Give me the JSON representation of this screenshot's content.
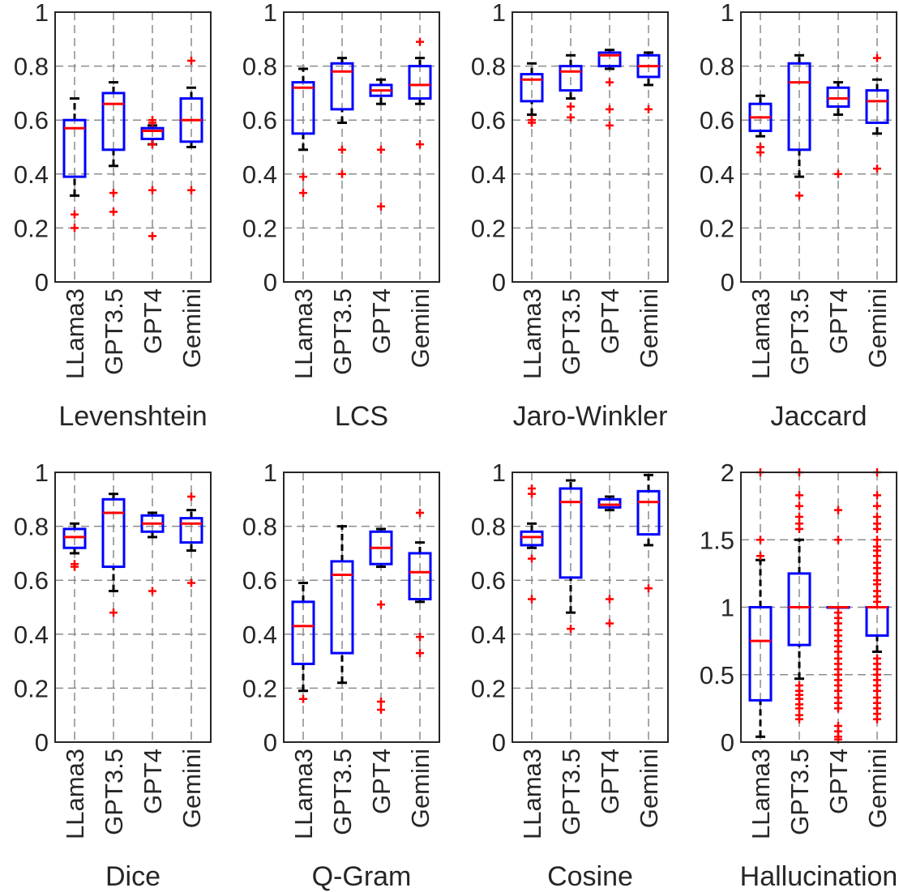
{
  "chart_data": [
    {
      "type": "box",
      "title": "Levenshtein",
      "categories": [
        "LLama3",
        "GPT3.5",
        "GPT4",
        "Gemini"
      ],
      "ylim": [
        0,
        1
      ],
      "yticks": [
        "0",
        "0.2",
        "0.4",
        "0.6",
        "0.8",
        "1"
      ],
      "grid": true,
      "boxes": [
        {
          "whisker_low": 0.32,
          "q1": 0.39,
          "median": 0.57,
          "q3": 0.6,
          "whisker_high": 0.68,
          "outliers": [
            0.25,
            0.2
          ]
        },
        {
          "whisker_low": 0.43,
          "q1": 0.49,
          "median": 0.66,
          "q3": 0.7,
          "whisker_high": 0.74,
          "outliers": [
            0.33,
            0.26
          ]
        },
        {
          "whisker_low": 0.51,
          "q1": 0.53,
          "median": 0.56,
          "q3": 0.57,
          "whisker_high": 0.58,
          "outliers": [
            0.6,
            0.59,
            0.51,
            0.34,
            0.17
          ]
        },
        {
          "whisker_low": 0.5,
          "q1": 0.52,
          "median": 0.6,
          "q3": 0.68,
          "whisker_high": 0.72,
          "outliers": [
            0.82,
            0.34
          ]
        }
      ]
    },
    {
      "type": "box",
      "title": "LCS",
      "categories": [
        "LLama3",
        "GPT3.5",
        "GPT4",
        "Gemini"
      ],
      "ylim": [
        0,
        1
      ],
      "yticks": [
        "0",
        "0.2",
        "0.4",
        "0.6",
        "0.8",
        "1"
      ],
      "grid": true,
      "boxes": [
        {
          "whisker_low": 0.49,
          "q1": 0.55,
          "median": 0.72,
          "q3": 0.74,
          "whisker_high": 0.79,
          "outliers": [
            0.39,
            0.33
          ]
        },
        {
          "whisker_low": 0.59,
          "q1": 0.64,
          "median": 0.78,
          "q3": 0.81,
          "whisker_high": 0.83,
          "outliers": [
            0.49,
            0.4
          ]
        },
        {
          "whisker_low": 0.66,
          "q1": 0.69,
          "median": 0.71,
          "q3": 0.73,
          "whisker_high": 0.75,
          "outliers": [
            0.49,
            0.28
          ]
        },
        {
          "whisker_low": 0.66,
          "q1": 0.68,
          "median": 0.73,
          "q3": 0.8,
          "whisker_high": 0.83,
          "outliers": [
            0.89,
            0.51
          ]
        }
      ]
    },
    {
      "type": "box",
      "title": "Jaro-Winkler",
      "categories": [
        "LLama3",
        "GPT3.5",
        "GPT4",
        "Gemini"
      ],
      "ylim": [
        0,
        1
      ],
      "yticks": [
        "0",
        "0.2",
        "0.4",
        "0.6",
        "0.8",
        "1"
      ],
      "grid": true,
      "boxes": [
        {
          "whisker_low": 0.62,
          "q1": 0.67,
          "median": 0.75,
          "q3": 0.77,
          "whisker_high": 0.81,
          "outliers": [
            0.6,
            0.59
          ]
        },
        {
          "whisker_low": 0.68,
          "q1": 0.71,
          "median": 0.78,
          "q3": 0.8,
          "whisker_high": 0.84,
          "outliers": [
            0.65,
            0.61
          ]
        },
        {
          "whisker_low": 0.79,
          "q1": 0.8,
          "median": 0.84,
          "q3": 0.85,
          "whisker_high": 0.86,
          "outliers": [
            0.74,
            0.64,
            0.58
          ]
        },
        {
          "whisker_low": 0.73,
          "q1": 0.76,
          "median": 0.8,
          "q3": 0.84,
          "whisker_high": 0.85,
          "outliers": [
            0.64
          ]
        }
      ]
    },
    {
      "type": "box",
      "title": "Jaccard",
      "categories": [
        "LLama3",
        "GPT3.5",
        "GPT4",
        "Gemini"
      ],
      "ylim": [
        0,
        1
      ],
      "yticks": [
        "0",
        "0.2",
        "0.4",
        "0.6",
        "0.8",
        "1"
      ],
      "grid": true,
      "boxes": [
        {
          "whisker_low": 0.54,
          "q1": 0.56,
          "median": 0.61,
          "q3": 0.66,
          "whisker_high": 0.69,
          "outliers": [
            0.5,
            0.48
          ]
        },
        {
          "whisker_low": 0.39,
          "q1": 0.49,
          "median": 0.74,
          "q3": 0.81,
          "whisker_high": 0.84,
          "outliers": [
            0.32
          ]
        },
        {
          "whisker_low": 0.62,
          "q1": 0.65,
          "median": 0.68,
          "q3": 0.72,
          "whisker_high": 0.74,
          "outliers": [
            0.4
          ]
        },
        {
          "whisker_low": 0.55,
          "q1": 0.59,
          "median": 0.67,
          "q3": 0.71,
          "whisker_high": 0.75,
          "outliers": [
            0.83,
            0.42
          ]
        }
      ]
    },
    {
      "type": "box",
      "title": "Dice",
      "categories": [
        "LLama3",
        "GPT3.5",
        "GPT4",
        "Gemini"
      ],
      "ylim": [
        0,
        1
      ],
      "yticks": [
        "0",
        "0.2",
        "0.4",
        "0.6",
        "0.8",
        "1"
      ],
      "grid": true,
      "boxes": [
        {
          "whisker_low": 0.7,
          "q1": 0.72,
          "median": 0.76,
          "q3": 0.79,
          "whisker_high": 0.81,
          "outliers": [
            0.66,
            0.65
          ]
        },
        {
          "whisker_low": 0.56,
          "q1": 0.65,
          "median": 0.85,
          "q3": 0.9,
          "whisker_high": 0.92,
          "outliers": [
            0.48
          ]
        },
        {
          "whisker_low": 0.76,
          "q1": 0.78,
          "median": 0.81,
          "q3": 0.84,
          "whisker_high": 0.85,
          "outliers": [
            0.56
          ]
        },
        {
          "whisker_low": 0.71,
          "q1": 0.74,
          "median": 0.81,
          "q3": 0.83,
          "whisker_high": 0.86,
          "outliers": [
            0.91,
            0.59
          ]
        }
      ]
    },
    {
      "type": "box",
      "title": "Q-Gram",
      "categories": [
        "LLama3",
        "GPT3.5",
        "GPT4",
        "Gemini"
      ],
      "ylim": [
        0,
        1
      ],
      "yticks": [
        "0",
        "0.2",
        "0.4",
        "0.6",
        "0.8",
        "1"
      ],
      "grid": true,
      "boxes": [
        {
          "whisker_low": 0.19,
          "q1": 0.29,
          "median": 0.43,
          "q3": 0.52,
          "whisker_high": 0.59,
          "outliers": [
            0.16
          ]
        },
        {
          "whisker_low": 0.22,
          "q1": 0.33,
          "median": 0.62,
          "q3": 0.67,
          "whisker_high": 0.8,
          "outliers": []
        },
        {
          "whisker_low": 0.65,
          "q1": 0.66,
          "median": 0.72,
          "q3": 0.78,
          "whisker_high": 0.79,
          "outliers": [
            0.51,
            0.15,
            0.12
          ]
        },
        {
          "whisker_low": 0.52,
          "q1": 0.53,
          "median": 0.63,
          "q3": 0.7,
          "whisker_high": 0.74,
          "outliers": [
            0.85,
            0.39,
            0.33
          ]
        }
      ]
    },
    {
      "type": "box",
      "title": "Cosine",
      "categories": [
        "LLama3",
        "GPT3.5",
        "GPT4",
        "Gemini"
      ],
      "ylim": [
        0,
        1
      ],
      "yticks": [
        "0",
        "0.2",
        "0.4",
        "0.6",
        "0.8",
        "1"
      ],
      "grid": true,
      "boxes": [
        {
          "whisker_low": 0.72,
          "q1": 0.73,
          "median": 0.76,
          "q3": 0.78,
          "whisker_high": 0.81,
          "outliers": [
            0.94,
            0.92,
            0.68,
            0.53
          ]
        },
        {
          "whisker_low": 0.48,
          "q1": 0.61,
          "median": 0.89,
          "q3": 0.94,
          "whisker_high": 0.97,
          "outliers": [
            0.42
          ]
        },
        {
          "whisker_low": 0.86,
          "q1": 0.87,
          "median": 0.88,
          "q3": 0.9,
          "whisker_high": 0.91,
          "outliers": [
            0.53,
            0.44
          ]
        },
        {
          "whisker_low": 0.73,
          "q1": 0.77,
          "median": 0.89,
          "q3": 0.93,
          "whisker_high": 0.99,
          "outliers": [
            0.57
          ]
        }
      ]
    },
    {
      "type": "box",
      "title": "Hallucination",
      "categories": [
        "LLama3",
        "GPT3.5",
        "GPT4",
        "Gemini"
      ],
      "ylim": [
        0,
        2
      ],
      "yticks": [
        "0",
        "0.5",
        "1",
        "1.5",
        "2"
      ],
      "grid": true,
      "boxes": [
        {
          "whisker_low": 0.04,
          "q1": 0.31,
          "median": 0.75,
          "q3": 1.0,
          "whisker_high": 1.35,
          "outliers": [
            2.0,
            1.5,
            1.38
          ]
        },
        {
          "whisker_low": 0.47,
          "q1": 0.72,
          "median": 1.0,
          "q3": 1.25,
          "whisker_high": 1.5,
          "outliers": [
            2.0,
            1.83,
            1.75,
            1.67,
            1.62,
            1.58,
            0.42,
            0.38,
            0.35,
            0.32,
            0.28,
            0.25,
            0.2,
            0.17
          ]
        },
        {
          "whisker_low": 1.0,
          "q1": 1.0,
          "median": 1.0,
          "q3": 1.0,
          "whisker_high": 1.0,
          "outliers": [
            1.72,
            1.5,
            0.96,
            0.92,
            0.88,
            0.83,
            0.79,
            0.75,
            0.71,
            0.67,
            0.62,
            0.58,
            0.54,
            0.5,
            0.46,
            0.42,
            0.38,
            0.33,
            0.29,
            0.25,
            0.12,
            0.08,
            0.04,
            0.02
          ]
        },
        {
          "whisker_low": 0.67,
          "q1": 0.79,
          "median": 1.0,
          "q3": 1.0,
          "whisker_high": 1.0,
          "outliers": [
            2.0,
            1.83,
            1.75,
            1.67,
            1.62,
            1.58,
            1.5,
            1.45,
            1.42,
            1.38,
            1.33,
            1.29,
            1.25,
            1.2,
            1.17,
            1.12,
            1.08,
            1.04,
            0.62,
            0.58,
            0.54,
            0.5,
            0.46,
            0.42,
            0.38,
            0.33,
            0.29,
            0.25,
            0.21,
            0.17
          ]
        }
      ]
    }
  ]
}
